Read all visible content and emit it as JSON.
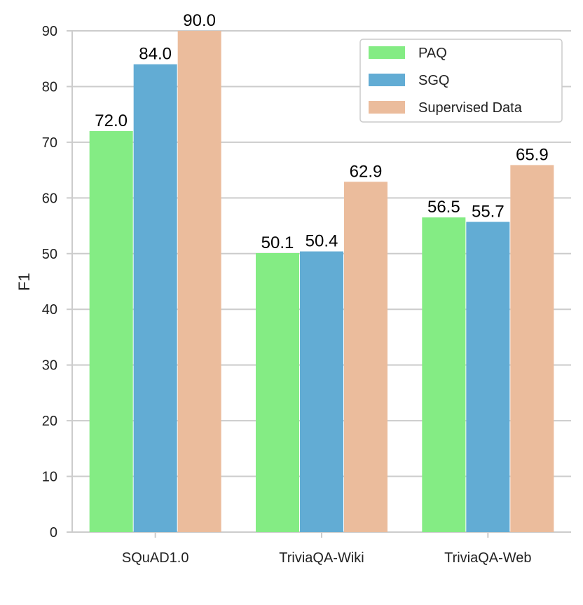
{
  "chart_data": {
    "type": "bar",
    "title": "",
    "xlabel": "",
    "ylabel": "F1",
    "ylim": [
      0,
      90
    ],
    "yticks": [
      0,
      10,
      20,
      30,
      40,
      50,
      60,
      70,
      80,
      90
    ],
    "grid": "horizontal",
    "legend_position": "top-right",
    "categories": [
      "SQuAD1.0",
      "TriviaQA-Wiki",
      "TriviaQA-Web"
    ],
    "series": [
      {
        "name": "PAQ",
        "color": "#84ec84",
        "values": [
          72.0,
          50.1,
          56.5
        ],
        "labels": [
          "72.0",
          "50.1",
          "56.5"
        ]
      },
      {
        "name": "SGQ",
        "color": "#62acd4",
        "values": [
          84.0,
          50.4,
          55.7
        ],
        "labels": [
          "84.0",
          "50.4",
          "55.7"
        ]
      },
      {
        "name": "Supervised Data",
        "color": "#ebbc9c",
        "values": [
          90.0,
          62.9,
          65.9
        ],
        "labels": [
          "90.0",
          "62.9",
          "65.9"
        ]
      }
    ]
  }
}
